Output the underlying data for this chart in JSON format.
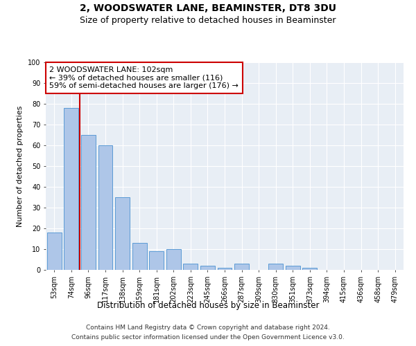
{
  "title": "2, WOODSWATER LANE, BEAMINSTER, DT8 3DU",
  "subtitle": "Size of property relative to detached houses in Beaminster",
  "xlabel": "Distribution of detached houses by size in Beaminster",
  "ylabel": "Number of detached properties",
  "categories": [
    "53sqm",
    "74sqm",
    "96sqm",
    "117sqm",
    "138sqm",
    "159sqm",
    "181sqm",
    "202sqm",
    "223sqm",
    "245sqm",
    "266sqm",
    "287sqm",
    "309sqm",
    "330sqm",
    "351sqm",
    "373sqm",
    "394sqm",
    "415sqm",
    "436sqm",
    "458sqm",
    "479sqm"
  ],
  "values": [
    18,
    78,
    65,
    60,
    35,
    13,
    9,
    10,
    3,
    2,
    1,
    3,
    0,
    3,
    2,
    1,
    0,
    0,
    0,
    0,
    0
  ],
  "bar_color": "#aec6e8",
  "bar_edge_color": "#5b9bd5",
  "red_line_index": 2,
  "annotation_line1": "2 WOODSWATER LANE: 102sqm",
  "annotation_line2": "← 39% of detached houses are smaller (116)",
  "annotation_line3": "59% of semi-detached houses are larger (176) →",
  "annotation_box_color": "#ffffff",
  "annotation_box_edge": "#cc0000",
  "ylim": [
    0,
    100
  ],
  "yticks": [
    0,
    10,
    20,
    30,
    40,
    50,
    60,
    70,
    80,
    90,
    100
  ],
  "bg_color": "#e8eef5",
  "footer1": "Contains HM Land Registry data © Crown copyright and database right 2024.",
  "footer2": "Contains public sector information licensed under the Open Government Licence v3.0.",
  "title_fontsize": 10,
  "subtitle_fontsize": 9,
  "tick_fontsize": 7,
  "ylabel_fontsize": 8,
  "xlabel_fontsize": 8.5,
  "annotation_fontsize": 8
}
